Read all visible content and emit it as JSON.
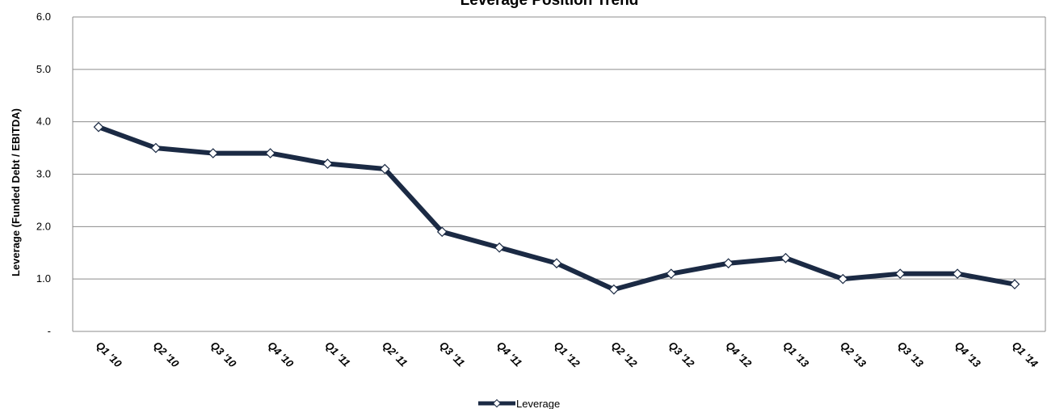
{
  "chart_data": {
    "type": "line",
    "title": "Leverage Position Trend",
    "ylabel": "Leverage (Funded Debt / EBITDA)",
    "xlabel": "",
    "ylim": [
      0,
      6
    ],
    "y_ticks": [
      {
        "value": 0,
        "label": "-"
      },
      {
        "value": 1,
        "label": "1.0"
      },
      {
        "value": 2,
        "label": "2.0"
      },
      {
        "value": 3,
        "label": "3.0"
      },
      {
        "value": 4,
        "label": "4.0"
      },
      {
        "value": 5,
        "label": "5.0"
      },
      {
        "value": 6,
        "label": "6.0"
      }
    ],
    "grid": true,
    "legend_position": "bottom-center",
    "categories": [
      "Q1 '10",
      "Q2 '10",
      "Q3 '10",
      "Q4 '10",
      "Q1 '11",
      "Q2' 11",
      "Q3 '11",
      "Q4 '11",
      "Q1 '12",
      "Q2 '12",
      "Q3 '12",
      "Q4 '12",
      "Q1 '13",
      "Q2 '13",
      "Q3 '13",
      "Q4 '13",
      "Q1 '14"
    ],
    "series": [
      {
        "name": "Leverage",
        "color": "#1b2a44",
        "values": [
          3.9,
          3.5,
          3.4,
          3.4,
          3.2,
          3.1,
          1.9,
          1.6,
          1.3,
          0.8,
          1.1,
          1.3,
          1.4,
          1.0,
          1.1,
          1.1,
          0.9
        ]
      }
    ]
  }
}
